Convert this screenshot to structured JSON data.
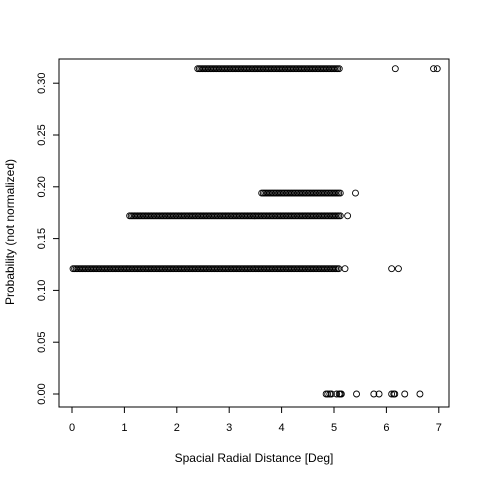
{
  "chart_data": {
    "type": "scatter",
    "title": "",
    "xlabel": "Spacial Radial Distance [Deg]",
    "ylabel": "Probability (not normalized)",
    "xlim": [
      0,
      7
    ],
    "ylim": [
      0,
      0.3
    ],
    "xticks": [
      0,
      1,
      2,
      3,
      4,
      5,
      6,
      7
    ],
    "xtick_labels": [
      "0",
      "1",
      "2",
      "3",
      "4",
      "5",
      "6",
      "7"
    ],
    "yticks": [
      0,
      0.05,
      0.1,
      0.15,
      0.2,
      0.25,
      0.3
    ],
    "ytick_labels": [
      "0.00",
      "0.05",
      "0.10",
      "0.15",
      "0.20",
      "0.25",
      "0.30"
    ],
    "grid": false,
    "marker": "open-circle",
    "dense_runs": [
      {
        "y": 0.314,
        "x_start": 2.4,
        "x_end": 5.12,
        "step": 0.03
      },
      {
        "y": 0.194,
        "x_start": 3.62,
        "x_end": 5.12,
        "step": 0.03
      },
      {
        "y": 0.172,
        "x_start": 1.1,
        "x_end": 5.12,
        "step": 0.03
      },
      {
        "y": 0.121,
        "x_start": 0.02,
        "x_end": 5.1,
        "step": 0.03
      }
    ],
    "points": [
      {
        "x": 6.17,
        "y": 0.314
      },
      {
        "x": 6.9,
        "y": 0.314
      },
      {
        "x": 6.97,
        "y": 0.314
      },
      {
        "x": 5.41,
        "y": 0.194
      },
      {
        "x": 5.26,
        "y": 0.172
      },
      {
        "x": 5.21,
        "y": 0.121
      },
      {
        "x": 6.1,
        "y": 0.121
      },
      {
        "x": 6.23,
        "y": 0.121
      },
      {
        "x": 4.85,
        "y": 0
      },
      {
        "x": 4.88,
        "y": 0
      },
      {
        "x": 4.92,
        "y": 0
      },
      {
        "x": 4.95,
        "y": 0
      },
      {
        "x": 5.05,
        "y": 0
      },
      {
        "x": 5.1,
        "y": 0
      },
      {
        "x": 5.12,
        "y": 0
      },
      {
        "x": 5.14,
        "y": 0
      },
      {
        "x": 5.43,
        "y": 0
      },
      {
        "x": 5.76,
        "y": 0
      },
      {
        "x": 5.86,
        "y": 0
      },
      {
        "x": 6.1,
        "y": 0
      },
      {
        "x": 6.14,
        "y": 0
      },
      {
        "x": 6.16,
        "y": 0
      },
      {
        "x": 6.35,
        "y": 0
      },
      {
        "x": 6.64,
        "y": 0
      }
    ]
  }
}
